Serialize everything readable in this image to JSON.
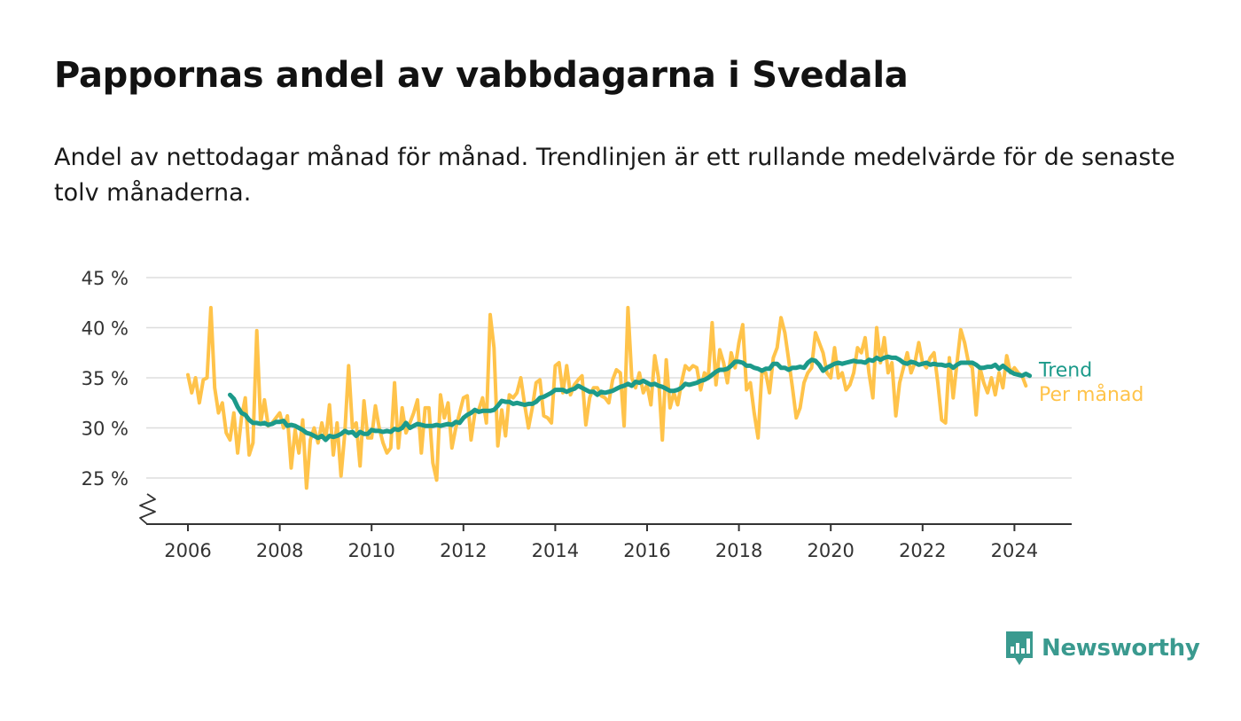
{
  "header": {
    "title": "Pappornas andel av vabbdagarna i Svedala",
    "subtitle": "Andel av nettodagar månad för månad. Trendlinjen är ett rullande medelvärde för de senaste tolv månaderna."
  },
  "brand": {
    "name": "Newsworthy",
    "icon": "newsworthy-chart-icon",
    "color": "#3a9a8f"
  },
  "chart_data": {
    "type": "line",
    "title": "Pappornas andel av vabbdagarna i Svedala",
    "subtitle": "Andel av nettodagar månad för månad. Trendlinjen är ett rullande medelvärde för de senaste tolv månaderna.",
    "x_unit": "year (monthly observations)",
    "xlim": [
      2005.5,
      2025.3
    ],
    "ylim": [
      21,
      46
    ],
    "y_axis_break": true,
    "grid": true,
    "x_ticks": [
      2006,
      2008,
      2010,
      2012,
      2014,
      2016,
      2018,
      2020,
      2022,
      2024
    ],
    "x_tick_labels": [
      "2006",
      "2008",
      "2010",
      "2012",
      "2014",
      "2016",
      "2018",
      "2020",
      "2022",
      "2024"
    ],
    "y_ticks": [
      25,
      30,
      35,
      40,
      45
    ],
    "y_tick_labels": [
      "25 %",
      "30 %",
      "35 %",
      "40 %",
      "45 %"
    ],
    "series": [
      {
        "name": "Per månad",
        "color": "#ffc34a",
        "x_start": 2006.0,
        "x_step": 0.08333,
        "values": [
          35.3,
          33.5,
          35.0,
          32.5,
          34.8,
          35.0,
          42.0,
          34.0,
          31.5,
          32.5,
          29.5,
          28.8,
          31.5,
          27.5,
          31.0,
          33.0,
          27.3,
          28.5,
          39.7,
          30.5,
          32.8,
          30.2,
          30.5,
          31.0,
          31.5,
          30.0,
          31.2,
          26.0,
          29.8,
          27.5,
          30.8,
          24.0,
          28.8,
          30.0,
          28.5,
          30.5,
          28.8,
          32.3,
          27.3,
          30.5,
          25.2,
          29.5,
          36.2,
          30.0,
          30.5,
          26.2,
          32.7,
          29.0,
          29.0,
          32.2,
          30.0,
          28.5,
          27.5,
          28.0,
          34.5,
          28.0,
          32.0,
          29.5,
          30.5,
          31.5,
          32.8,
          27.5,
          32.0,
          32.0,
          26.5,
          24.8,
          33.3,
          31.0,
          32.5,
          28.0,
          30.0,
          31.5,
          33.0,
          33.2,
          28.8,
          31.5,
          31.8,
          33.0,
          30.5,
          41.3,
          38.0,
          28.2,
          31.8,
          29.2,
          33.3,
          33.0,
          33.5,
          35.0,
          32.3,
          30.0,
          32.0,
          34.5,
          34.8,
          31.2,
          31.0,
          30.5,
          36.2,
          36.5,
          33.5,
          36.2,
          33.3,
          34.3,
          34.8,
          35.2,
          30.3,
          33.0,
          34.0,
          34.0,
          33.2,
          33.0,
          32.5,
          34.8,
          35.8,
          35.5,
          30.2,
          42.0,
          35.0,
          34.0,
          35.5,
          33.5,
          34.3,
          32.3,
          37.2,
          35.0,
          28.8,
          36.8,
          32.0,
          33.5,
          32.3,
          34.5,
          36.2,
          35.8,
          36.2,
          36.0,
          33.8,
          35.5,
          35.0,
          40.5,
          34.3,
          37.8,
          36.5,
          34.5,
          37.5,
          36.0,
          38.5,
          40.3,
          33.8,
          34.5,
          31.5,
          29.0,
          35.5,
          35.5,
          33.5,
          37.0,
          38.0,
          41.0,
          39.5,
          36.8,
          34.0,
          31.0,
          32.0,
          34.5,
          35.5,
          36.0,
          39.5,
          38.5,
          37.5,
          35.5,
          35.0,
          38.0,
          35.0,
          35.5,
          33.8,
          34.3,
          35.5,
          38.0,
          37.5,
          39.0,
          35.5,
          33.0,
          40.0,
          36.5,
          39.0,
          35.5,
          36.5,
          31.2,
          34.5,
          36.0,
          37.5,
          35.5,
          36.5,
          38.5,
          36.5,
          36.0,
          37.0,
          37.5,
          34.5,
          30.8,
          30.5,
          37.0,
          33.0,
          36.5,
          39.8,
          38.5,
          36.5,
          36.0,
          31.3,
          36.0,
          34.5,
          33.5,
          35.0,
          33.3,
          35.5,
          34.0,
          37.2,
          35.5,
          36.0,
          35.5,
          35.2,
          34.2
        ]
      },
      {
        "name": "Trend",
        "color": "#1c9a8a",
        "x_start": 2006.9167,
        "x_step": 0.08333,
        "values": [
          33.3,
          32.9,
          32.1,
          31.5,
          31.3,
          30.8,
          30.5,
          30.5,
          30.4,
          30.5,
          30.3,
          30.4,
          30.6,
          30.6,
          30.7,
          30.2,
          30.3,
          30.2,
          30.0,
          29.8,
          29.5,
          29.4,
          29.2,
          29.0,
          29.2,
          28.8,
          29.2,
          29.1,
          29.2,
          29.4,
          29.7,
          29.5,
          29.6,
          29.2,
          29.6,
          29.4,
          29.4,
          29.8,
          29.7,
          29.7,
          29.6,
          29.7,
          29.6,
          29.9,
          29.8,
          30.0,
          30.5,
          30.0,
          30.2,
          30.4,
          30.3,
          30.2,
          30.2,
          30.2,
          30.3,
          30.2,
          30.3,
          30.4,
          30.3,
          30.6,
          30.5,
          31.0,
          31.3,
          31.5,
          31.8,
          31.6,
          31.7,
          31.7,
          31.7,
          31.8,
          32.2,
          32.7,
          32.6,
          32.6,
          32.4,
          32.5,
          32.4,
          32.3,
          32.4,
          32.4,
          32.6,
          33.0,
          33.1,
          33.3,
          33.5,
          33.8,
          33.8,
          33.8,
          33.6,
          33.8,
          33.9,
          34.2,
          34.0,
          33.8,
          33.6,
          33.6,
          33.3,
          33.6,
          33.5,
          33.6,
          33.7,
          33.9,
          34.1,
          34.2,
          34.4,
          34.2,
          34.6,
          34.5,
          34.7,
          34.5,
          34.3,
          34.4,
          34.2,
          34.1,
          33.9,
          33.7,
          33.7,
          33.8,
          34.0,
          34.4,
          34.3,
          34.4,
          34.5,
          34.7,
          34.8,
          35.0,
          35.3,
          35.6,
          35.8,
          35.8,
          35.9,
          36.2,
          36.6,
          36.6,
          36.5,
          36.2,
          36.2,
          36.0,
          35.9,
          35.7,
          35.9,
          35.9,
          36.4,
          36.4,
          36.0,
          36.0,
          35.8,
          36.0,
          36.0,
          36.1,
          36.0,
          36.5,
          36.8,
          36.7,
          36.3,
          35.7,
          36.0,
          36.2,
          36.4,
          36.5,
          36.4,
          36.5,
          36.6,
          36.7,
          36.6,
          36.6,
          36.5,
          36.8,
          36.7,
          37.0,
          36.8,
          37.0,
          37.1,
          37.0,
          37.0,
          36.8,
          36.5,
          36.4,
          36.6,
          36.5,
          36.3,
          36.4,
          36.5,
          36.3,
          36.4,
          36.3,
          36.3,
          36.2,
          36.3,
          36.0,
          36.3,
          36.5,
          36.5,
          36.5,
          36.5,
          36.3,
          36.0,
          36.0,
          36.1,
          36.1,
          36.3,
          35.9,
          36.2,
          35.9,
          35.6,
          35.4,
          35.3,
          35.2,
          35.4,
          35.2
        ]
      }
    ]
  }
}
